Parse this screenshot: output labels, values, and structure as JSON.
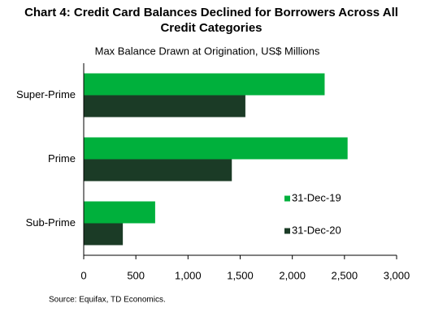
{
  "chart_data": {
    "type": "barh",
    "title": "Chart 4: Credit Card Balances Declined for Borrowers Across All Credit Categories",
    "subtitle": "Max Balance Drawn at Origination, US$ Millions",
    "source": "Source: Equifax,  TD Economics.",
    "categories": [
      "Super-Prime",
      "Prime",
      "Sub-Prime"
    ],
    "series": [
      {
        "name": "31-Dec-19",
        "color": "#00b03c",
        "values": [
          2310,
          2530,
          685
        ]
      },
      {
        "name": "31-Dec-20",
        "color": "#1b3b26",
        "values": [
          1550,
          1420,
          375
        ]
      }
    ],
    "xlim": [
      0,
      3000
    ],
    "xticks": [
      0,
      500,
      {
        "value": 1000,
        "label": "1,000"
      },
      {
        "value": 1500,
        "label": "1,500"
      },
      {
        "value": 2000,
        "label": "2,000"
      },
      {
        "value": 2500,
        "label": "2,500"
      },
      {
        "value": 3000,
        "label": "3,000"
      }
    ],
    "legend_position": "right"
  }
}
